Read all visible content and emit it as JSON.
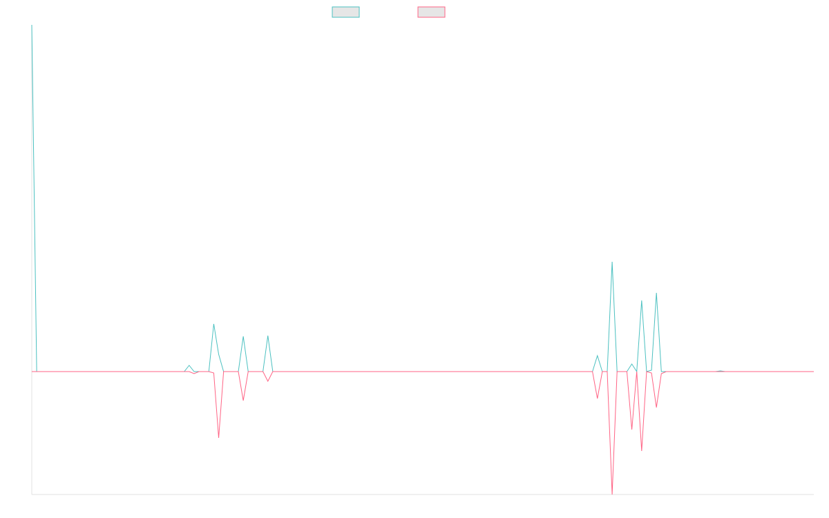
{
  "chart_data": {
    "type": "line",
    "ylim": [
      -178,
      502
    ],
    "legend": "top",
    "series": [
      {
        "color": "#4bc0c0",
        "values": [
          502,
          0,
          0,
          0,
          0,
          0,
          0,
          0,
          0,
          0,
          0,
          0,
          0,
          0,
          0,
          0,
          0,
          0,
          0,
          0,
          0,
          0,
          0,
          0,
          0,
          0,
          0,
          0,
          0,
          0,
          0,
          0,
          9,
          0,
          0,
          0,
          0,
          69,
          25,
          0,
          0,
          0,
          0,
          51,
          0,
          0,
          0,
          0,
          52,
          0,
          0,
          0,
          0,
          0,
          0,
          0,
          0,
          0,
          0,
          0,
          0,
          0,
          0,
          0,
          0,
          0,
          0,
          0,
          0,
          0,
          0,
          0,
          0,
          0,
          0,
          0,
          0,
          0,
          0,
          0,
          0,
          0,
          0,
          0,
          0,
          0,
          0,
          0,
          0,
          0,
          0,
          0,
          0,
          0,
          0,
          0,
          0,
          0,
          0,
          0,
          0,
          0,
          0,
          0,
          0,
          0,
          0,
          0,
          0,
          0,
          0,
          0,
          0,
          0,
          0,
          23,
          0,
          0,
          159,
          0,
          0,
          0,
          11,
          0,
          103,
          0,
          2,
          114,
          0,
          0,
          0,
          0,
          0,
          0,
          0,
          0,
          0,
          0,
          0,
          0,
          1,
          0,
          0,
          0,
          0,
          0,
          0,
          0,
          0,
          0,
          0,
          0,
          0,
          0,
          0,
          0,
          0,
          0,
          0,
          0
        ]
      },
      {
        "color": "#ff6384",
        "values": [
          0,
          0,
          0,
          0,
          0,
          0,
          0,
          0,
          0,
          0,
          0,
          0,
          0,
          0,
          0,
          0,
          0,
          0,
          0,
          0,
          0,
          0,
          0,
          0,
          0,
          0,
          0,
          0,
          0,
          0,
          0,
          0,
          0,
          -3,
          0,
          0,
          0,
          -2,
          -96,
          0,
          0,
          0,
          0,
          -42,
          0,
          0,
          0,
          0,
          -14,
          0,
          0,
          0,
          0,
          0,
          0,
          0,
          0,
          0,
          0,
          0,
          0,
          0,
          0,
          0,
          0,
          0,
          0,
          0,
          0,
          0,
          0,
          0,
          0,
          0,
          0,
          0,
          0,
          0,
          0,
          0,
          0,
          0,
          0,
          0,
          0,
          0,
          0,
          0,
          0,
          0,
          0,
          0,
          0,
          0,
          0,
          0,
          0,
          0,
          0,
          0,
          0,
          0,
          0,
          0,
          0,
          0,
          0,
          0,
          0,
          0,
          0,
          0,
          0,
          0,
          0,
          -39,
          0,
          0,
          -178,
          0,
          0,
          0,
          -84,
          0,
          -115,
          0,
          -2,
          -52,
          -3,
          0,
          0,
          0,
          0,
          0,
          0,
          0,
          0,
          0,
          0,
          0,
          0,
          0,
          0,
          0,
          0,
          0,
          0,
          0,
          0,
          0,
          0,
          0,
          0,
          0,
          0,
          0,
          0,
          0,
          0,
          0
        ]
      }
    ]
  }
}
